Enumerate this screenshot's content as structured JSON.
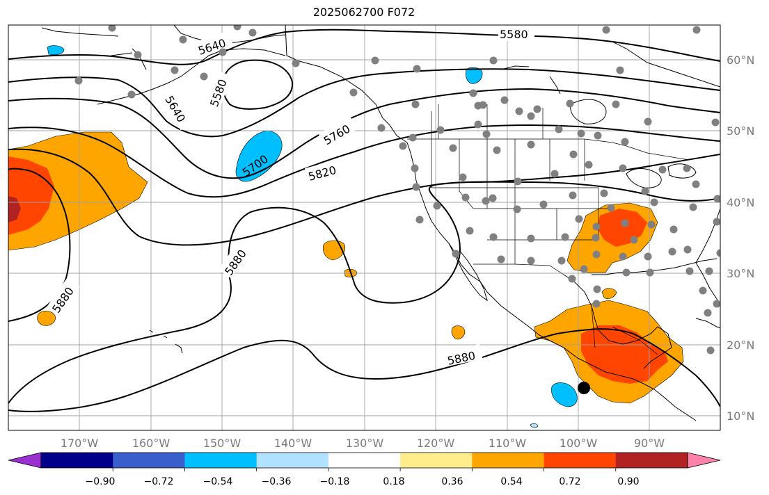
{
  "title": "2025062700 F072",
  "lat_labels": [
    "60°N",
    "50°N",
    "40°N",
    "30°N",
    "20°N",
    "10°N"
  ],
  "lon_labels": [
    "170°W",
    "160°W",
    "150°W",
    "140°W",
    "130°W",
    "120°W",
    "110°W",
    "100°W",
    "90°W"
  ],
  "colorbar": {
    "ticks": [
      "−0.90",
      "−0.72",
      "−0.54",
      "−0.36",
      "−0.18",
      "0.18",
      "0.36",
      "0.54",
      "0.72",
      "0.90"
    ],
    "colors": [
      "#9b30d0",
      "#00008b",
      "#3a5fcd",
      "#00bfff",
      "#b0e2ff",
      "#ffffff",
      "#ffec8b",
      "#ffa500",
      "#ff4500",
      "#b22222",
      "#ff82ab"
    ]
  },
  "contour_labels": [
    "5640",
    "5580",
    "5640",
    "5580",
    "5700",
    "5760",
    "5820",
    "5880",
    "5880",
    "5880"
  ],
  "colors": {
    "positive_mid": "#ffa500",
    "positive_high": "#ff4500",
    "positive_max": "#b22222",
    "negative_mid": "#00bfff",
    "negative_low": "#b0e2ff",
    "station": "#808080"
  }
}
